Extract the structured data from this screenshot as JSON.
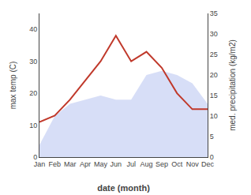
{
  "chart_data": {
    "type": "line",
    "categories": [
      "Jan",
      "Feb",
      "Mar",
      "Apr",
      "May",
      "Jun",
      "Jul",
      "Aug",
      "Sep",
      "Oct",
      "Nov",
      "Dec"
    ],
    "xlabel": "date (month)",
    "ylabel": "max temp (C)",
    "y2label": "med. precipitation (kg/m2)",
    "series": [
      {
        "type": "area",
        "axis": "y2",
        "color": "#b0bef0",
        "values": [
          3,
          10,
          13,
          14,
          15,
          14,
          14,
          20,
          21,
          20,
          18,
          13
        ]
      },
      {
        "type": "line",
        "color": "#c0392b",
        "values": [
          11,
          13,
          18,
          24,
          30,
          38,
          30,
          33,
          28,
          20,
          15,
          15
        ]
      }
    ],
    "ylim": [
      0,
      45
    ],
    "yticks": [
      0,
      10,
      20,
      30,
      40
    ],
    "y2lim": [
      0,
      35
    ],
    "y2ticks": [
      0,
      5,
      10,
      15,
      20,
      25,
      30,
      35
    ],
    "grid": false
  }
}
